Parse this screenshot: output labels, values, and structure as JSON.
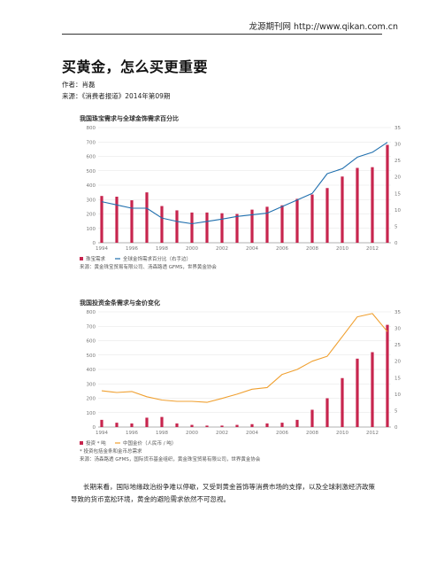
{
  "header": {
    "source_line": "龙源期刊网 http://www.qikan.com.cn"
  },
  "article": {
    "title": "买黄金，怎么买更重要",
    "author_line": "作者：肖磊",
    "source_line": "来源：《消费者报道》2014年第09期",
    "paragraph": "长期来看，国际地缘政治纷争难以停歇，又受到黄金首饰等消费市场的支撑，以及全球刺激经济政策导致的货币宽松环境，黄金的避险需求依然不可忽视。"
  },
  "chart_data": [
    {
      "type": "bar",
      "title": "我国珠宝需求与全球金饰需求百分比",
      "categories": [
        "1994",
        "1995",
        "1996",
        "1997",
        "1998",
        "1999",
        "2000",
        "2001",
        "2002",
        "2003",
        "2004",
        "2005",
        "2006",
        "2007",
        "2008",
        "2009",
        "2010",
        "2011",
        "2012",
        "2013"
      ],
      "x_tick_labels": [
        "1994",
        "1996",
        "1998",
        "2000",
        "2002",
        "2004",
        "2006",
        "2008",
        "2010",
        "2012"
      ],
      "series": [
        {
          "name": "珠宝需求",
          "kind": "bar",
          "axis": "left",
          "values": [
            325,
            320,
            295,
            350,
            255,
            225,
            210,
            210,
            205,
            200,
            230,
            250,
            260,
            305,
            335,
            380,
            460,
            520,
            525,
            680
          ]
        },
        {
          "name": "全球金饰需求百分比（右手边）",
          "kind": "line",
          "axis": "right",
          "values": [
            12.5,
            11.5,
            10.5,
            10.5,
            7.5,
            6.5,
            5.8,
            6.5,
            7.2,
            8,
            8.5,
            9,
            11,
            13,
            15,
            21,
            22.5,
            26,
            27.5,
            30.5
          ]
        }
      ],
      "ylim_left": [
        0,
        800
      ],
      "yticks_left": [
        0,
        100,
        200,
        300,
        400,
        500,
        600,
        700,
        800
      ],
      "ylim_right": [
        0,
        35
      ],
      "yticks_right": [
        0,
        5,
        10,
        15,
        20,
        25,
        30,
        35
      ],
      "source": "来源：黄金珠宝贸易有限公司、汤森路透 GFMS，世界黄金协会",
      "colors": {
        "bar": "#c7254e",
        "line": "#1f6fae"
      }
    },
    {
      "type": "bar",
      "title": "我国投资金条需求与金价变化",
      "categories": [
        "1994",
        "1995",
        "1996",
        "1997",
        "1998",
        "1999",
        "2000",
        "2001",
        "2002",
        "2003",
        "2004",
        "2005",
        "2006",
        "2007",
        "2008",
        "2009",
        "2010",
        "2011",
        "2012",
        "2013"
      ],
      "x_tick_labels": [
        "1994",
        "1996",
        "1998",
        "2000",
        "2002",
        "2004",
        "2006",
        "2008",
        "2010",
        "2012"
      ],
      "series": [
        {
          "name": "投资 * 吨",
          "kind": "bar",
          "axis": "left",
          "values": [
            50,
            30,
            25,
            65,
            70,
            25,
            15,
            10,
            10,
            15,
            20,
            25,
            30,
            50,
            120,
            200,
            340,
            475,
            520,
            710
          ]
        },
        {
          "name": "中国金价（人民币 / 吨）",
          "kind": "line",
          "axis": "right",
          "values": [
            11,
            10.5,
            10.8,
            9.2,
            8.2,
            7.8,
            7.8,
            7.5,
            8.7,
            10,
            11.5,
            12,
            16,
            17.5,
            20,
            21.5,
            27.5,
            33.5,
            34.5,
            29
          ]
        }
      ],
      "ylim_left": [
        0,
        800
      ],
      "yticks_left": [
        0,
        100,
        200,
        300,
        400,
        500,
        600,
        700,
        800
      ],
      "ylim_right": [
        0,
        35
      ],
      "yticks_right": [
        0,
        5,
        10,
        15,
        20,
        25,
        30,
        35
      ],
      "footnote": "* 投资包括金条和金币总需求",
      "source": "来源：汤森路透 GFMS，国际货币基金组织，黄金珠宝贸易有限公司，世界黄金协会",
      "colors": {
        "bar": "#c7254e",
        "line": "#f0a030"
      }
    }
  ]
}
